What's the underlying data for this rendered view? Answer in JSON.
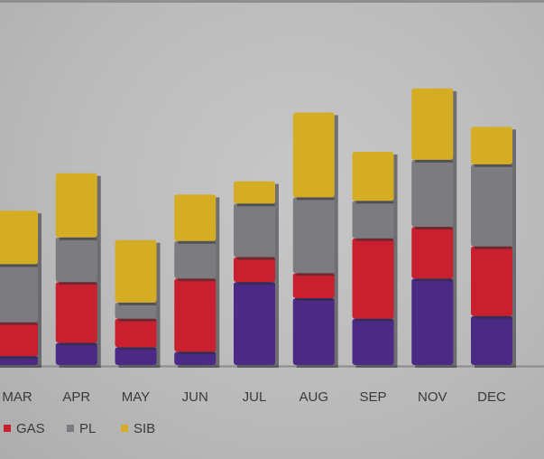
{
  "chart_data": {
    "type": "bar",
    "stacked": true,
    "categories": [
      "MAR",
      "APR",
      "MAY",
      "JUN",
      "JUL",
      "AUG",
      "SEP",
      "NOV",
      "DEC"
    ],
    "series": [
      {
        "name": "",
        "color": "#4a2a85",
        "values": [
          10,
          25,
          20,
          15,
          93,
          75,
          52,
          97,
          55
        ]
      },
      {
        "name": "GAS",
        "color": "#c8202e",
        "values": [
          38,
          68,
          32,
          82,
          28,
          28,
          90,
          58,
          78
        ]
      },
      {
        "name": "PL",
        "color": "#7c7c80",
        "values": [
          65,
          50,
          18,
          42,
          60,
          85,
          42,
          75,
          92
        ]
      },
      {
        "name": "SIB",
        "color": "#d4ad24",
        "values": [
          60,
          72,
          70,
          52,
          25,
          95,
          55,
          80,
          42
        ]
      }
    ],
    "legend": [
      "GAS",
      "PL",
      "SIB"
    ],
    "legend_placement": "bottom-left",
    "xlabel": "",
    "ylabel": "",
    "ylim": [
      0,
      320
    ],
    "grid": false
  }
}
